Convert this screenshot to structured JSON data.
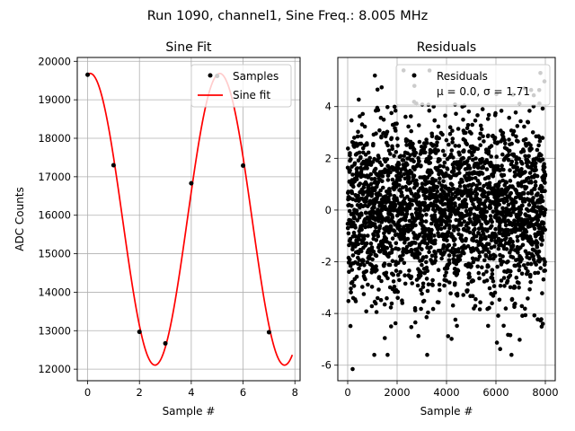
{
  "suptitle": "Run 1090, channel1, Sine Freq.: 8.005 MHz",
  "chart_data": [
    {
      "type": "line",
      "title": "Sine Fit",
      "xlabel": "Sample #",
      "ylabel": "ADC Counts",
      "xlim": [
        -0.4,
        8.2
      ],
      "ylim": [
        11700,
        20100
      ],
      "grid": true,
      "legend_position": "top-right",
      "xticks": [
        0,
        2,
        4,
        6,
        8
      ],
      "yticks": [
        12000,
        13000,
        14000,
        15000,
        16000,
        17000,
        18000,
        19000,
        20000
      ],
      "series": [
        {
          "name": "Samples",
          "kind": "scatter",
          "color": "#000000",
          "x": [
            0,
            1,
            2,
            3,
            4,
            5,
            6,
            7
          ],
          "y": [
            19650,
            17300,
            12970,
            12670,
            16830,
            19620,
            17290,
            12960
          ]
        },
        {
          "name": "Sine fit",
          "kind": "line",
          "color": "#ff0000",
          "model": {
            "offset": 15895,
            "amplitude": 3790,
            "period": 5,
            "phase_x": 0.1,
            "x_range": [
              0,
              7.9
            ]
          }
        }
      ],
      "legend": [
        "Samples",
        "Sine fit"
      ]
    },
    {
      "type": "scatter",
      "title": "Residuals",
      "xlabel": "Sample #",
      "ylabel": "",
      "xlim": [
        -400,
        8400
      ],
      "ylim": [
        -6.6,
        5.9
      ],
      "grid": true,
      "legend_position": "top-right",
      "xticks": [
        0,
        2000,
        4000,
        6000,
        8000
      ],
      "yticks": [
        -6,
        -4,
        -2,
        0,
        2,
        4
      ],
      "series": [
        {
          "name": "Residuals",
          "color": "#000000",
          "count": 8000,
          "x_range": [
            0,
            8000
          ],
          "mean": 0.0,
          "std": 1.71,
          "notable_points": [
            {
              "x": 200,
              "y": -6.15
            },
            {
              "x": 1100,
              "y": 5.2
            },
            {
              "x": 2700,
              "y": 4.8
            },
            {
              "x": 7800,
              "y": 5.3
            }
          ]
        }
      ],
      "legend_label": "Residuals",
      "annotation": "μ = 0.0, σ = 1.71"
    }
  ]
}
